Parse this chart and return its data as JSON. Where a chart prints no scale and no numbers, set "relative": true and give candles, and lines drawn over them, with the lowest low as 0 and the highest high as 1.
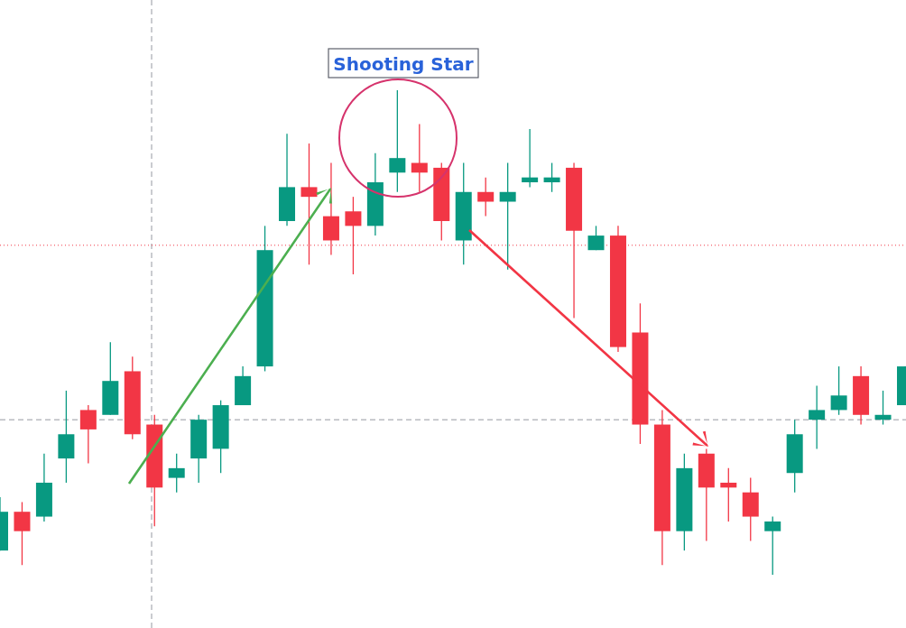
{
  "chart_data": {
    "type": "candlestick",
    "relative": true,
    "categories": [
      null,
      null,
      null,
      null,
      null,
      null,
      null,
      null,
      null,
      null,
      null,
      null,
      null,
      null,
      null,
      null,
      null,
      null,
      null,
      null,
      null,
      null,
      null,
      null,
      null,
      null,
      null,
      null,
      null,
      null,
      null,
      null,
      null,
      null,
      null,
      null,
      null,
      null,
      null,
      null,
      null,
      null
    ],
    "ohlc": [
      [
        0.05,
        0.16,
        0.05,
        0.13
      ],
      [
        0.13,
        0.15,
        0.02,
        0.09
      ],
      [
        0.12,
        0.25,
        0.11,
        0.19
      ],
      [
        0.24,
        0.38,
        0.19,
        0.29
      ],
      [
        0.34,
        0.35,
        0.23,
        0.3
      ],
      [
        0.33,
        0.48,
        0.33,
        0.4
      ],
      [
        0.42,
        0.45,
        0.28,
        0.29
      ],
      [
        0.31,
        0.33,
        0.1,
        0.18
      ],
      [
        0.2,
        0.25,
        0.17,
        0.22
      ],
      [
        0.24,
        0.33,
        0.19,
        0.32
      ],
      [
        0.26,
        0.36,
        0.21,
        0.35
      ],
      [
        0.35,
        0.43,
        0.35,
        0.41
      ],
      [
        0.43,
        0.72,
        0.42,
        0.67
      ],
      [
        0.73,
        0.91,
        0.72,
        0.8
      ],
      [
        0.8,
        0.89,
        0.64,
        0.78
      ],
      [
        0.74,
        0.85,
        0.66,
        0.69
      ],
      [
        0.75,
        0.78,
        0.62,
        0.72
      ],
      [
        0.72,
        0.87,
        0.7,
        0.81
      ],
      [
        0.83,
        1.0,
        0.79,
        0.86
      ],
      [
        0.85,
        0.93,
        0.79,
        0.83
      ],
      [
        0.84,
        0.85,
        0.69,
        0.73
      ],
      [
        0.69,
        0.85,
        0.64,
        0.79
      ],
      [
        0.79,
        0.82,
        0.74,
        0.77
      ],
      [
        0.77,
        0.85,
        0.63,
        0.79
      ],
      [
        0.81,
        0.92,
        0.8,
        0.82
      ],
      [
        0.81,
        0.85,
        0.79,
        0.82
      ],
      [
        0.84,
        0.85,
        0.53,
        0.71
      ],
      [
        0.67,
        0.72,
        0.67,
        0.7
      ],
      [
        0.7,
        0.72,
        0.46,
        0.47
      ],
      [
        0.5,
        0.56,
        0.27,
        0.31
      ],
      [
        0.31,
        0.34,
        0.02,
        0.09
      ],
      [
        0.09,
        0.25,
        0.05,
        0.22
      ],
      [
        0.25,
        0.26,
        0.07,
        0.18
      ],
      [
        0.19,
        0.22,
        0.11,
        0.18
      ],
      [
        0.17,
        0.2,
        0.07,
        0.12
      ],
      [
        0.09,
        0.12,
        0.0,
        0.11
      ],
      [
        0.21,
        0.32,
        0.17,
        0.29
      ],
      [
        0.32,
        0.39,
        0.26,
        0.34
      ],
      [
        0.34,
        0.43,
        0.33,
        0.37
      ],
      [
        0.41,
        0.43,
        0.31,
        0.33
      ],
      [
        0.32,
        0.38,
        0.31,
        0.33
      ],
      [
        0.35,
        0.43,
        0.35,
        0.43
      ]
    ],
    "colors": [
      "#089981",
      "#f23645",
      "#089981",
      "#089981",
      "#f23645",
      "#089981",
      "#f23645",
      "#f23645",
      "#089981",
      "#089981",
      "#089981",
      "#089981",
      "#089981",
      "#089981",
      "#f23645",
      "#f23645",
      "#f23645",
      "#089981",
      "#089981",
      "#f23645",
      "#f23645",
      "#089981",
      "#f23645",
      "#089981",
      "#089981",
      "#089981",
      "#f23645",
      "#089981",
      "#f23645",
      "#f23645",
      "#f23645",
      "#089981",
      "#f23645",
      "#f23645",
      "#f23645",
      "#089981",
      "#089981",
      "#089981",
      "#089981",
      "#f23645",
      "#089981",
      "#089981"
    ],
    "ref_lines": [
      {
        "axis": "y",
        "value": 0.32,
        "color": "#9598a1",
        "line_style": "dashed"
      },
      {
        "axis": "y",
        "value": 0.68,
        "color": "#f23645",
        "line_style": "dotted"
      }
    ],
    "annotations": [
      "Shooting Star"
    ]
  }
}
